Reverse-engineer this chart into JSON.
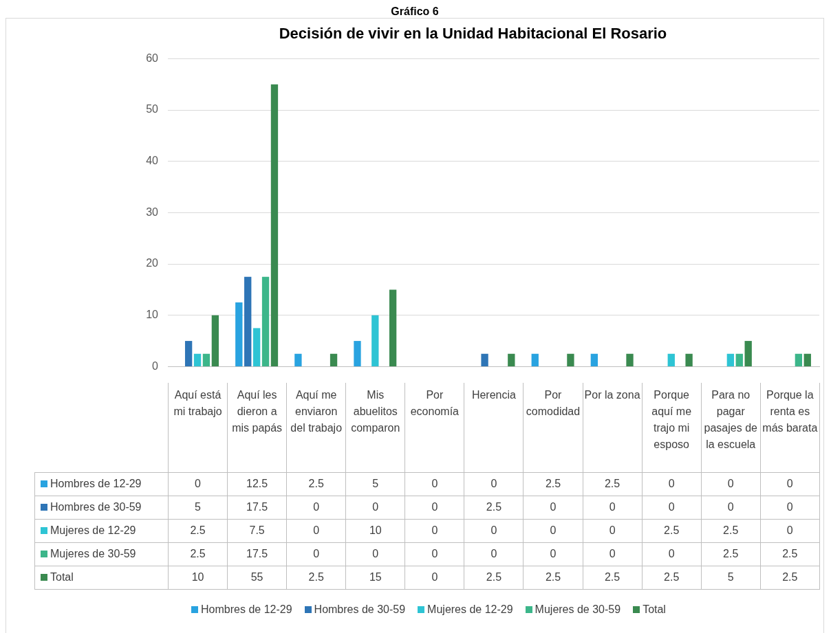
{
  "chart_data": {
    "type": "bar",
    "title": "Decisión de vivir en la Unidad Habitacional El Rosario",
    "annotations": [
      "Gráfico 6"
    ],
    "categories": [
      "Aquí está mi trabajo",
      "Aquí les dieron a mis papás",
      "Aquí me enviaron del trabajo",
      "Mis abuelitos comparon",
      "Por economía",
      "Herencia",
      "Por comodidad",
      "Por la zona",
      "Porque aquí me trajo mi esposo",
      "Para no pagar pasajes de la escuela",
      "Porque la renta es más barata"
    ],
    "series": [
      {
        "name": "Hombres de 12-29",
        "color": "#29a3e0",
        "values": [
          0,
          12.5,
          2.5,
          5,
          0,
          0,
          2.5,
          2.5,
          0,
          0,
          0
        ]
      },
      {
        "name": "Hombres de 30-59",
        "color": "#2e75b6",
        "values": [
          5,
          17.5,
          0,
          0,
          0,
          2.5,
          0,
          0,
          0,
          0,
          0
        ]
      },
      {
        "name": "Mujeres de 12-29",
        "color": "#2ec4d4",
        "values": [
          2.5,
          7.5,
          0,
          10,
          0,
          0,
          0,
          0,
          2.5,
          2.5,
          0
        ]
      },
      {
        "name": "Mujeres de 30-59",
        "color": "#3cb68a",
        "values": [
          2.5,
          17.5,
          0,
          0,
          0,
          0,
          0,
          0,
          0,
          2.5,
          2.5
        ]
      },
      {
        "name": "Total",
        "color": "#3a8a50",
        "values": [
          10,
          55,
          2.5,
          15,
          0,
          2.5,
          2.5,
          2.5,
          2.5,
          5,
          2.5
        ]
      }
    ],
    "ylim": [
      0,
      60
    ],
    "yticks": [
      0,
      10,
      20,
      30,
      40,
      50,
      60
    ],
    "grid": "y",
    "legend": "bottom",
    "data_labels": true
  }
}
